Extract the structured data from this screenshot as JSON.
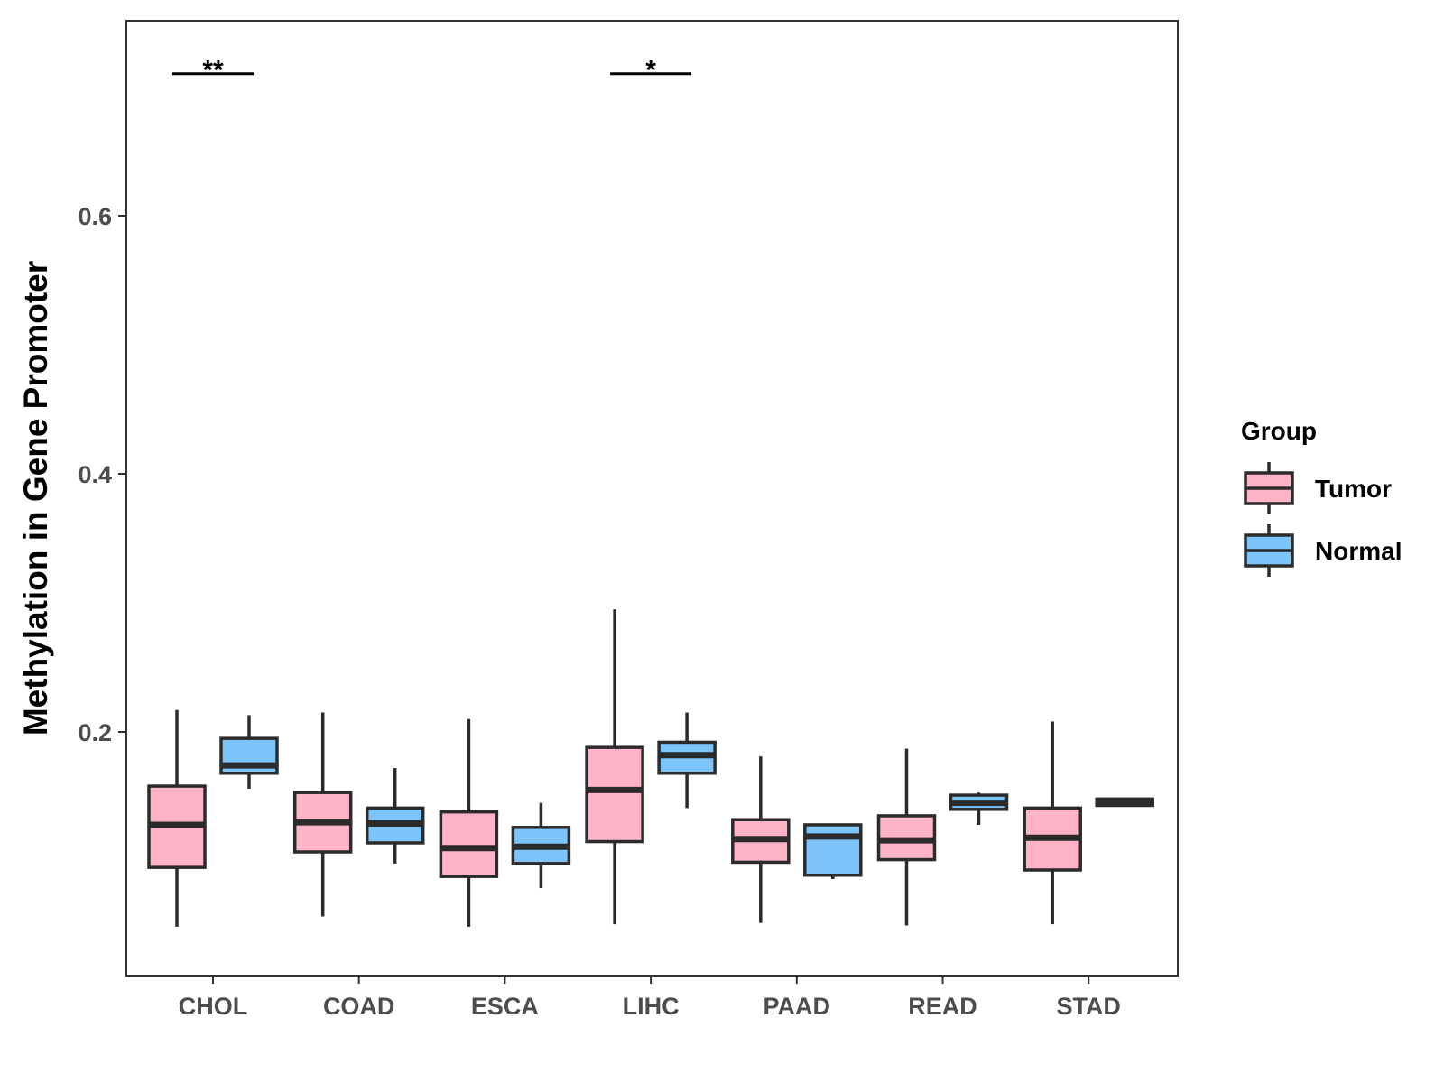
{
  "chart_data": {
    "type": "boxplot",
    "title": "",
    "xlabel": "",
    "ylabel": "Methylation in Gene Promoter",
    "ylim": [
      0.025,
      0.75
    ],
    "yticks": [
      {
        "value": 0.2,
        "label": "0.2"
      },
      {
        "value": 0.4,
        "label": "0.4"
      },
      {
        "value": 0.6,
        "label": "0.6"
      }
    ],
    "categories": [
      "CHOL",
      "COAD",
      "ESCA",
      "LIHC",
      "PAAD",
      "READ",
      "STAD"
    ],
    "legend": {
      "title": "Group",
      "position": "right",
      "entries": [
        {
          "name": "Tumor",
          "color": "#ffb3c6"
        },
        {
          "name": "Normal",
          "color": "#7dc4fa"
        }
      ]
    },
    "grid": false,
    "series": [
      {
        "name": "Tumor",
        "color": "#ffb3c6",
        "boxes": [
          {
            "category": "CHOL",
            "min": 0.049,
            "q1": 0.095,
            "median": 0.128,
            "q3": 0.158,
            "max": 0.217
          },
          {
            "category": "COAD",
            "min": 0.057,
            "q1": 0.107,
            "median": 0.13,
            "q3": 0.153,
            "max": 0.215
          },
          {
            "category": "ESCA",
            "min": 0.049,
            "q1": 0.088,
            "median": 0.11,
            "q3": 0.138,
            "max": 0.21
          },
          {
            "category": "LIHC",
            "min": 0.051,
            "q1": 0.115,
            "median": 0.155,
            "q3": 0.188,
            "max": 0.295
          },
          {
            "category": "PAAD",
            "min": 0.052,
            "q1": 0.099,
            "median": 0.117,
            "q3": 0.132,
            "max": 0.181
          },
          {
            "category": "READ",
            "min": 0.05,
            "q1": 0.101,
            "median": 0.116,
            "q3": 0.135,
            "max": 0.187
          },
          {
            "category": "STAD",
            "min": 0.051,
            "q1": 0.093,
            "median": 0.118,
            "q3": 0.141,
            "max": 0.208
          }
        ]
      },
      {
        "name": "Normal",
        "color": "#7dc4fa",
        "boxes": [
          {
            "category": "CHOL",
            "min": 0.156,
            "q1": 0.168,
            "median": 0.174,
            "q3": 0.195,
            "max": 0.213
          },
          {
            "category": "COAD",
            "min": 0.098,
            "q1": 0.114,
            "median": 0.129,
            "q3": 0.141,
            "max": 0.172
          },
          {
            "category": "ESCA",
            "min": 0.079,
            "q1": 0.098,
            "median": 0.111,
            "q3": 0.126,
            "max": 0.145
          },
          {
            "category": "LIHC",
            "min": 0.141,
            "q1": 0.168,
            "median": 0.182,
            "q3": 0.192,
            "max": 0.215
          },
          {
            "category": "PAAD",
            "min": 0.086,
            "q1": 0.089,
            "median": 0.119,
            "q3": 0.128,
            "max": 0.129
          },
          {
            "category": "READ",
            "min": 0.128,
            "q1": 0.14,
            "median": 0.145,
            "q3": 0.151,
            "max": 0.153
          },
          {
            "category": "STAD",
            "min": 0.142,
            "q1": 0.143,
            "median": 0.145,
            "q3": 0.148,
            "max": 0.148
          }
        ]
      }
    ],
    "annotations": [
      {
        "category": "CHOL",
        "label": "**",
        "y": 0.71
      },
      {
        "category": "LIHC",
        "label": "*",
        "y": 0.71
      }
    ]
  }
}
